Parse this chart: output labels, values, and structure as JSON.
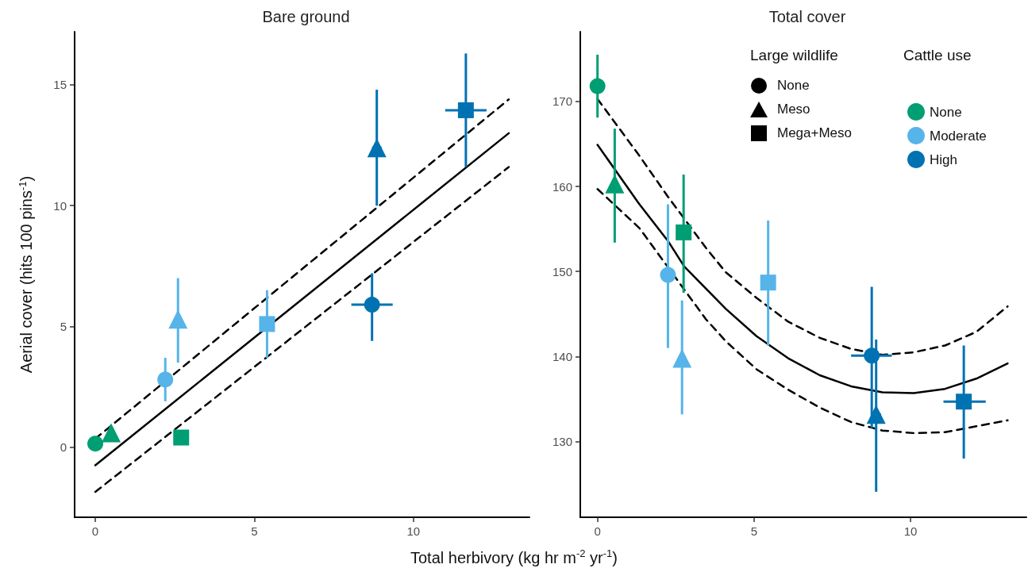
{
  "chart_data": [
    {
      "type": "scatter",
      "title": "Bare ground",
      "xlabel": "Total herbivory (kg hr m$^{-2}$ yr$^{-1}$)",
      "ylabel": "Aerial cover (hits 100 pins$^{-1}$)",
      "xlim": [
        -0.65,
        13.65
      ],
      "xticks": [
        0,
        5,
        10
      ],
      "ylim": [
        -2.9,
        17.2
      ],
      "yticks": [
        0,
        5,
        10,
        15
      ],
      "grid": false,
      "legend": false,
      "series": [
        {
          "marker": [
            "circle",
            "triangle",
            "square"
          ],
          "color": "#009e73",
          "x": [
            0,
            0.5,
            2.7
          ],
          "values": [
            0.15,
            0.6,
            0.4
          ]
        },
        {
          "marker": [
            "circle",
            "triangle",
            "square"
          ],
          "color": "#56b4e9",
          "x": [
            2.2,
            2.6,
            5.4
          ],
          "values": [
            2.8,
            5.3,
            5.1
          ],
          "errors": [
            [
              1.9,
              3.7
            ],
            [
              3.5,
              7.0
            ],
            [
              3.7,
              6.5
            ]
          ]
        },
        {
          "marker": [
            "circle",
            "triangle",
            "square"
          ],
          "color": "#0072b2",
          "x": [
            8.7,
            8.85,
            11.65
          ],
          "values": [
            5.9,
            12.4,
            13.95
          ],
          "errors": [
            [
              4.4,
              7.2
            ],
            [
              10.0,
              14.8
            ],
            [
              11.6,
              16.3
            ]
          ],
          "xerrors": [
            [
              8.05,
              9.35
            ],
            [
              8.7,
              9.0
            ],
            [
              11.0,
              12.3
            ]
          ]
        },
        {
          "type": "line",
          "color": "#000000",
          "line_style": "solid",
          "marker": "none",
          "x": [
            0,
            13
          ],
          "values": [
            -0.75,
            13.0
          ]
        },
        {
          "type": "line",
          "color": "#000000",
          "line_style": "dashed",
          "marker": "none",
          "x": [
            0,
            13
          ],
          "values": [
            0.35,
            14.4
          ]
        },
        {
          "type": "line",
          "color": "#000000",
          "line_style": "dashed",
          "marker": "none",
          "x": [
            0,
            13
          ],
          "values": [
            -1.85,
            11.6
          ]
        }
      ]
    },
    {
      "type": "scatter",
      "title": "Total cover",
      "xlim": [
        -0.55,
        13.7
      ],
      "xticks": [
        0,
        5,
        10
      ],
      "ylim": [
        121.1,
        178.2
      ],
      "yticks": [
        130,
        140,
        150,
        160,
        170
      ],
      "grid": false,
      "legend": "top right",
      "legend_title": "Cattle use",
      "annotations": [
        "Large wildlife",
        "None",
        "Meso",
        "Mega+Meso"
      ],
      "series": [
        {
          "name": "None",
          "marker": [
            "circle",
            "triangle",
            "square"
          ],
          "color": "#009e73",
          "x": [
            0,
            0.55,
            2.75
          ],
          "values": [
            171.8,
            160.3,
            154.6
          ],
          "errors": [
            [
              168.1,
              175.5
            ],
            [
              153.4,
              166.8
            ],
            [
              147.5,
              161.4
            ]
          ]
        },
        {
          "name": "Moderate",
          "marker": [
            "circle",
            "triangle",
            "square"
          ],
          "color": "#56b4e9",
          "x": [
            2.25,
            2.7,
            5.45
          ],
          "values": [
            149.6,
            139.8,
            148.7
          ],
          "errors": [
            [
              141.0,
              157.9
            ],
            [
              133.2,
              146.6
            ],
            [
              141.3,
              156.0
            ]
          ]
        },
        {
          "name": "High",
          "marker": [
            "circle",
            "triangle",
            "square"
          ],
          "color": "#0072b2",
          "x": [
            8.76,
            8.9,
            11.7
          ],
          "values": [
            140.1,
            133.2,
            134.7
          ],
          "errors": [
            [
              131.6,
              148.2
            ],
            [
              124.1,
              142.0
            ],
            [
              128.0,
              141.3
            ]
          ],
          "xerrors": [
            [
              8.1,
              9.4
            ],
            [
              8.8,
              9.05
            ],
            [
              11.05,
              12.4
            ]
          ]
        },
        {
          "type": "line",
          "color": "#000000",
          "line_style": "solid",
          "marker": "none",
          "x": [
            0,
            1.34,
            2.25,
            2.77,
            3.46,
            4.1,
            5.08,
            6.09,
            7.1,
            8.1,
            9.1,
            10.1,
            11.1,
            12.1,
            13.1
          ],
          "values": [
            164.9,
            157.9,
            153.6,
            150.6,
            148.0,
            145.6,
            142.4,
            139.8,
            137.8,
            136.5,
            135.8,
            135.7,
            136.2,
            137.4,
            139.2
          ]
        },
        {
          "type": "line",
          "color": "#000000",
          "line_style": "dashed",
          "marker": "none",
          "x": [
            0,
            1.34,
            2.25,
            3.46,
            4.1,
            5.08,
            6.09,
            7.1,
            8.1,
            9.1,
            10.1,
            11.1,
            12.1,
            13.1
          ],
          "values": [
            170.3,
            163.6,
            158.8,
            152.8,
            149.9,
            146.9,
            144.1,
            142.2,
            140.9,
            140.2,
            140.5,
            141.3,
            142.9,
            145.9
          ]
        },
        {
          "type": "line",
          "color": "#000000",
          "line_style": "dashed",
          "marker": "none",
          "x": [
            0,
            1.34,
            3.46,
            4.1,
            5.08,
            6.09,
            7.1,
            8.1,
            9.1,
            10.1,
            11.1,
            12.1,
            13.1
          ],
          "values": [
            159.7,
            155.1,
            144.4,
            141.8,
            138.5,
            136.1,
            134.0,
            132.3,
            131.3,
            131.0,
            131.1,
            131.8,
            132.5
          ]
        }
      ]
    }
  ]
}
